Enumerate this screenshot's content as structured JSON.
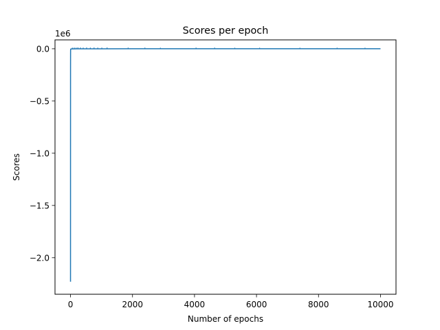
{
  "chart_data": {
    "type": "line",
    "title": "Scores per epoch",
    "xlabel": "Number of epochs",
    "ylabel": "Scores",
    "offset_text": "1e6",
    "xlim": [
      -500,
      10500
    ],
    "ylim": [
      -2.35,
      0.085
    ],
    "x_ticks": [
      0,
      2000,
      4000,
      6000,
      8000,
      10000
    ],
    "x_tick_labels": [
      "0",
      "2000",
      "4000",
      "6000",
      "8000",
      "10000"
    ],
    "y_ticks": [
      -2.0,
      -1.5,
      -1.0,
      -0.5,
      0.0
    ],
    "y_tick_labels": [
      "−2.0",
      "−1.5",
      "−1.0",
      "−0.5",
      "0.0"
    ],
    "grid": false,
    "series": [
      {
        "color": "#1f77b4",
        "x": [
          0,
          1,
          2,
          3,
          5,
          10,
          20,
          50,
          100,
          200,
          500,
          1000,
          2000,
          4000,
          6000,
          8000,
          10000
        ],
        "y": [
          -2.23,
          -0.2,
          -0.05,
          -0.015,
          -0.005,
          -0.003,
          -0.002,
          -0.001,
          -0.001,
          -0.0005,
          -0.0003,
          -0.0002,
          -0.0001,
          -0.0001,
          -0.0001,
          -0.0001,
          -0.0001
        ]
      }
    ],
    "noise_marks": {
      "x": [
        60,
        120,
        180,
        240,
        320,
        410,
        520,
        640,
        760,
        880,
        1010,
        1180,
        1860,
        2400,
        2900,
        4050,
        4650,
        5300,
        6100,
        7400,
        8600,
        9500
      ],
      "y": [
        0.004,
        0.005,
        0.004,
        0.006,
        0.005,
        0.004,
        0.005,
        0.004,
        0.005,
        0.004,
        0.004,
        0.005,
        0.004,
        0.004,
        0.003,
        0.004,
        0.004,
        0.003,
        0.003,
        0.003,
        0.003,
        0.003
      ]
    }
  }
}
